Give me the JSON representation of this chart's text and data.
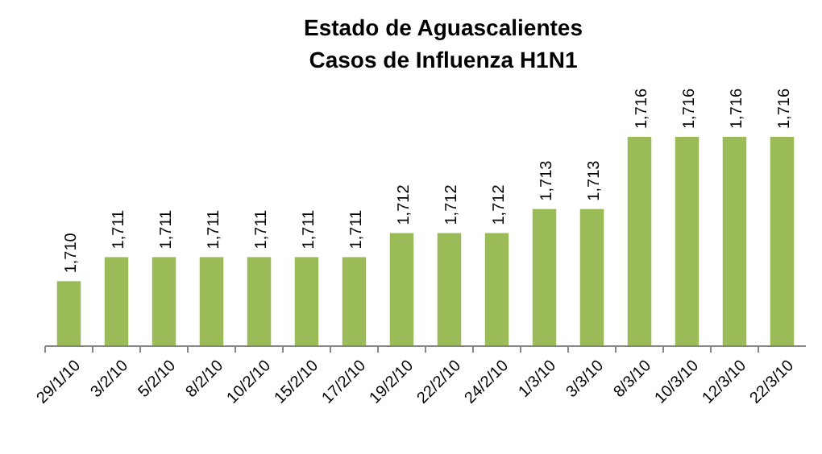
{
  "chart_data": {
    "type": "bar",
    "title": "Estado de Aguascalientes",
    "subtitle": "Casos de Influenza H1N1",
    "categories": [
      "29/1/10",
      "3/2/10",
      "5/2/10",
      "8/2/10",
      "10/2/10",
      "15/2/10",
      "17/2/10",
      "19/2/10",
      "22/2/10",
      "24/2/10",
      "1/3/10",
      "3/3/10",
      "8/3/10",
      "10/3/10",
      "12/3/10",
      "22/3/10"
    ],
    "values": [
      1710,
      1711,
      1711,
      1711,
      1711,
      1711,
      1711,
      1712,
      1712,
      1712,
      1713,
      1713,
      1716,
      1716,
      1716,
      1716
    ],
    "value_labels": [
      "1,710",
      "1,711",
      "1,711",
      "1,711",
      "1,711",
      "1,711",
      "1,711",
      "1,712",
      "1,712",
      "1,712",
      "1,713",
      "1,713",
      "1,716",
      "1,716",
      "1,716",
      "1,716"
    ],
    "color": "#9bbb59",
    "ylim": [
      1707.3,
      1716
    ]
  }
}
